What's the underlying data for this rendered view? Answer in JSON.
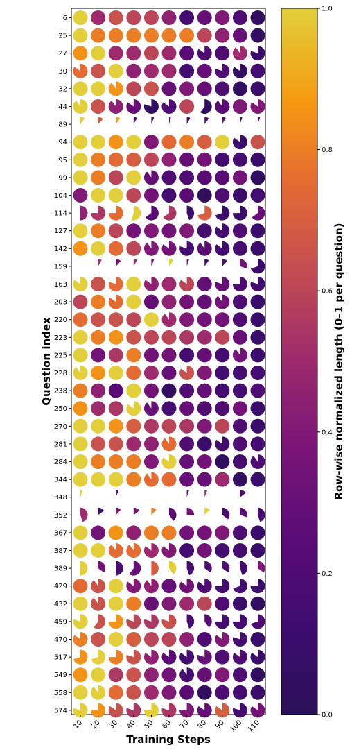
{
  "chart_data": {
    "type": "heatmap",
    "subtype": "pie-glyph grid",
    "xlabel": "Training Steps",
    "ylabel": "Question index",
    "colorbar_label": "Row-wise normalized length (0–1 per question)",
    "colormap": "plasma",
    "clim": [
      0.0,
      1.0
    ],
    "colorbar_ticks": [
      "0.0",
      "0.2",
      "0.4",
      "0.6",
      "0.8",
      "1.0"
    ],
    "grid": false,
    "legend": "colorbar right",
    "x": [
      "10",
      "20",
      "30",
      "40",
      "50",
      "60",
      "70",
      "80",
      "90",
      "100",
      "110"
    ],
    "rows": [
      {
        "q": "6",
        "color": [
          1.0,
          0.5,
          0.65,
          0.6,
          0.6,
          0.45,
          0.15,
          0.3,
          0.4,
          0.2,
          0.05
        ],
        "fill": [
          1,
          1,
          1,
          1,
          1,
          1,
          1,
          1,
          1,
          1,
          1
        ]
      },
      {
        "q": "25",
        "color": [
          1.0,
          0.8,
          0.8,
          0.8,
          0.8,
          0.8,
          0.8,
          0.6,
          0.45,
          0.3,
          0.05
        ],
        "fill": [
          1,
          1,
          1,
          1,
          1,
          1,
          1,
          1,
          1,
          1,
          1
        ]
      },
      {
        "q": "27",
        "color": [
          0.85,
          1.0,
          0.5,
          0.5,
          0.6,
          0.5,
          0.25,
          0.2,
          0.2,
          0.5,
          0.1
        ],
        "fill": [
          1,
          1,
          1,
          1,
          1,
          1,
          1,
          0.85,
          1,
          0.9,
          0.8
        ]
      },
      {
        "q": "30",
        "color": [
          0.75,
          0.65,
          1.0,
          0.45,
          0.5,
          0.5,
          0.15,
          0.3,
          0.2,
          0.05,
          0.15
        ],
        "fill": [
          0.85,
          1,
          1,
          1,
          1,
          1,
          1,
          1,
          0.8,
          0.85,
          1
        ]
      },
      {
        "q": "32",
        "color": [
          1.0,
          1.0,
          0.85,
          0.6,
          0.65,
          0.3,
          0.4,
          0.3,
          0.2,
          0.05,
          0.1
        ],
        "fill": [
          1,
          1,
          0.9,
          1,
          1,
          1,
          1,
          1,
          1,
          1,
          1
        ]
      },
      {
        "q": "44",
        "color": [
          1.0,
          0.65,
          0.45,
          0.3,
          0.05,
          0.2,
          0.6,
          0.05,
          0.25,
          0.4,
          0.4
        ],
        "fill": [
          0.9,
          1,
          0.9,
          0.85,
          0.8,
          0.85,
          1,
          0.6,
          0.9,
          1,
          0.85
        ]
      },
      {
        "q": "89",
        "color": [
          1.0,
          0.7,
          0.9,
          0.25,
          0.15,
          0.3,
          0.15,
          0.2,
          0.3,
          0.2,
          0.2
        ],
        "fill": [
          0.1,
          0.12,
          0.1,
          0.08,
          0.06,
          0.04,
          0.08,
          0.1,
          0.08,
          0.05,
          0.05
        ]
      },
      {
        "q": "94",
        "color": [
          1.0,
          1.0,
          0.85,
          1.0,
          0.4,
          0.75,
          0.8,
          0.7,
          1.0,
          0.1,
          0.65
        ],
        "fill": [
          1,
          1,
          1,
          1,
          1,
          1,
          1,
          1,
          1,
          0.85,
          1
        ]
      },
      {
        "q": "95",
        "color": [
          1.0,
          0.8,
          0.75,
          0.7,
          0.6,
          0.45,
          0.3,
          0.35,
          0.15,
          0.15,
          0.1
        ],
        "fill": [
          1,
          1,
          1,
          1,
          1,
          1,
          1,
          1,
          1,
          1,
          1
        ]
      },
      {
        "q": "99",
        "color": [
          1.0,
          0.8,
          0.6,
          1.0,
          0.3,
          0.2,
          0.2,
          0.25,
          0.25,
          0.35,
          0.05
        ],
        "fill": [
          1,
          1,
          1,
          1,
          0.9,
          1,
          1,
          1,
          1,
          1,
          1
        ]
      },
      {
        "q": "104",
        "color": [
          0.4,
          1.0,
          1.0,
          0.6,
          0.35,
          0.15,
          0.25,
          0.05,
          0.2,
          0.1,
          0.15
        ],
        "fill": [
          1,
          1,
          1,
          1,
          1,
          1,
          1,
          1,
          1,
          1,
          1
        ]
      },
      {
        "q": "114",
        "color": [
          0.45,
          0.55,
          0.75,
          1.0,
          0.25,
          0.55,
          0.1,
          0.7,
          0.1,
          0.1,
          0.3
        ],
        "fill": [
          0.5,
          0.75,
          0.75,
          0.55,
          0.65,
          0.65,
          0.45,
          0.7,
          0.7,
          0.75,
          0.65
        ]
      },
      {
        "q": "127",
        "color": [
          1.0,
          0.8,
          0.6,
          0.35,
          0.4,
          0.35,
          0.4,
          0.15,
          0.15,
          0.2,
          0.1
        ],
        "fill": [
          1,
          1,
          1,
          1,
          1,
          1,
          1,
          1,
          0.85,
          1,
          1
        ]
      },
      {
        "q": "142",
        "color": [
          0.85,
          1.0,
          0.75,
          0.6,
          0.4,
          0.35,
          0.15,
          0.25,
          0.15,
          0.15,
          0.1
        ],
        "fill": [
          1,
          1,
          1,
          1,
          0.9,
          0.85,
          0.8,
          0.9,
          0.85,
          1,
          1
        ]
      },
      {
        "q": "159",
        "color": [
          0.5,
          0.5,
          0.35,
          0.5,
          0.3,
          1.0,
          0.3,
          0.15,
          0.2,
          0.35,
          0.1
        ],
        "fill": [
          0,
          0.08,
          0.12,
          0.08,
          0.06,
          0.1,
          0.05,
          0.1,
          0.12,
          0.3,
          0.7
        ]
      },
      {
        "q": "163",
        "color": [
          1.0,
          0.65,
          0.75,
          1.0,
          0.45,
          0.5,
          0.6,
          0.3,
          0.3,
          0.2,
          0.15
        ],
        "fill": [
          0.85,
          1,
          0.8,
          1,
          0.85,
          1,
          0.85,
          1,
          0.8,
          0.75,
          0.8
        ]
      },
      {
        "q": "203",
        "color": [
          0.6,
          0.8,
          0.75,
          1.0,
          0.3,
          0.45,
          0.35,
          0.3,
          0.35,
          0.2,
          0.1
        ],
        "fill": [
          1,
          1,
          0.85,
          1,
          1,
          1,
          1,
          1,
          0.9,
          1,
          1
        ]
      },
      {
        "q": "220",
        "color": [
          0.75,
          0.65,
          0.65,
          0.6,
          1.0,
          0.5,
          0.4,
          0.35,
          0.35,
          0.2,
          0.1
        ],
        "fill": [
          1,
          1,
          1,
          1,
          1,
          0.9,
          1,
          1,
          1,
          1,
          1
        ]
      },
      {
        "q": "223",
        "color": [
          1.0,
          0.8,
          0.85,
          0.65,
          0.6,
          0.6,
          0.55,
          0.5,
          0.6,
          0.3,
          0.1
        ],
        "fill": [
          1,
          1,
          1,
          1,
          1,
          1,
          1,
          1,
          1,
          1,
          1
        ]
      },
      {
        "q": "225",
        "color": [
          1.0,
          0.35,
          0.55,
          0.8,
          0.35,
          0.35,
          0.15,
          0.3,
          0.15,
          0.35,
          0.1
        ],
        "fill": [
          1,
          1,
          1,
          1,
          1,
          1,
          1,
          1,
          1,
          0.9,
          1
        ]
      },
      {
        "q": "228",
        "color": [
          1.0,
          0.85,
          1.0,
          0.75,
          0.5,
          0.3,
          0.65,
          0.4,
          0.15,
          0.15,
          0.15
        ],
        "fill": [
          0.9,
          1,
          1,
          1,
          1,
          1,
          0.85,
          1,
          1,
          1,
          1
        ]
      },
      {
        "q": "238",
        "color": [
          0.8,
          0.45,
          0.25,
          1.0,
          0.35,
          0.05,
          0.2,
          0.3,
          0.15,
          0.15,
          0.2
        ],
        "fill": [
          1,
          1,
          1,
          1,
          1,
          1,
          1,
          1,
          1,
          1,
          1
        ]
      },
      {
        "q": "250",
        "color": [
          0.85,
          0.5,
          0.55,
          1.0,
          0.3,
          0.15,
          0.3,
          0.2,
          0.2,
          0.35,
          0.1
        ],
        "fill": [
          1,
          1,
          1,
          0.85,
          0.9,
          1,
          1,
          1,
          1,
          1,
          1
        ]
      },
      {
        "q": "270",
        "color": [
          1.0,
          1.0,
          0.85,
          0.7,
          0.55,
          0.6,
          0.55,
          0.4,
          0.6,
          0.2,
          0.1
        ],
        "fill": [
          1,
          1,
          1,
          1,
          1,
          1,
          1,
          1,
          1,
          1,
          1
        ]
      },
      {
        "q": "281",
        "color": [
          1.0,
          0.65,
          0.65,
          0.5,
          0.45,
          0.75,
          0.2,
          0.1,
          0.15,
          0.2,
          0.15
        ],
        "fill": [
          1,
          1,
          1,
          1,
          1,
          0.9,
          1,
          1,
          0.85,
          1,
          1
        ]
      },
      {
        "q": "284",
        "color": [
          1.0,
          0.8,
          0.8,
          0.8,
          0.4,
          1.0,
          0.3,
          0.35,
          0.05,
          0.15,
          0.2
        ],
        "fill": [
          1,
          1,
          1,
          1,
          1,
          0.85,
          1,
          1,
          1,
          1,
          0.9
        ]
      },
      {
        "q": "344",
        "color": [
          1.0,
          1.0,
          1.0,
          0.8,
          0.75,
          0.75,
          0.3,
          0.3,
          0.5,
          0.05,
          0.1
        ],
        "fill": [
          1,
          1,
          1,
          1,
          0.9,
          1,
          1,
          1,
          1,
          1,
          1
        ]
      },
      {
        "q": "348",
        "color": [
          1.0,
          0.5,
          0.25,
          0.5,
          0.5,
          0.5,
          0.2,
          0.5,
          0.5,
          0.2,
          0.5
        ],
        "fill": [
          0.05,
          0,
          0.06,
          0,
          0,
          0,
          0.05,
          0.06,
          0,
          0.15,
          0
        ]
      },
      {
        "q": "352",
        "color": [
          0.5,
          0.1,
          0.4,
          0.35,
          0.8,
          0.25,
          0.35,
          1.0,
          0.2,
          0.25,
          0.15
        ],
        "fill": [
          0.45,
          0.15,
          0.12,
          0.15,
          0.12,
          0.4,
          0.25,
          0.12,
          0.35,
          0.3,
          0.45
        ]
      },
      {
        "q": "367",
        "color": [
          1.0,
          0.35,
          0.85,
          0.45,
          0.8,
          0.8,
          0.35,
          0.35,
          0.4,
          0.2,
          0.1
        ],
        "fill": [
          1,
          1,
          1,
          1,
          1,
          1,
          1,
          1,
          1,
          1,
          1
        ]
      },
      {
        "q": "387",
        "color": [
          1.0,
          1.0,
          0.75,
          0.75,
          0.5,
          0.4,
          0.15,
          0.35,
          0.15,
          0.15,
          0.1
        ],
        "fill": [
          1,
          1,
          0.9,
          0.9,
          0.85,
          0.85,
          1,
          1,
          1,
          1,
          1
        ]
      },
      {
        "q": "389",
        "color": [
          1.0,
          0.35,
          0.15,
          0.3,
          0.7,
          1.0,
          0.15,
          0.2,
          0.2,
          0.15,
          0.4
        ],
        "fill": [
          0.5,
          0.35,
          0.5,
          0.6,
          0.5,
          0.4,
          0.45,
          0.35,
          0.35,
          0.45,
          0.35
        ]
      },
      {
        "q": "429",
        "color": [
          0.75,
          0.65,
          1.0,
          0.4,
          0.45,
          0.3,
          0.35,
          0.2,
          0.15,
          0.15,
          0.1
        ],
        "fill": [
          1,
          0.9,
          1,
          0.85,
          0.9,
          1,
          0.85,
          0.85,
          0.75,
          0.7,
          0.75
        ]
      },
      {
        "q": "432",
        "color": [
          1.0,
          0.65,
          1.0,
          0.8,
          0.3,
          0.4,
          0.5,
          0.6,
          0.2,
          0.1,
          0.05
        ],
        "fill": [
          1,
          0.9,
          1,
          1,
          1,
          1,
          1,
          1,
          1,
          1,
          1
        ]
      },
      {
        "q": "459",
        "color": [
          1.0,
          0.65,
          0.85,
          0.6,
          0.55,
          0.65,
          0.15,
          0.25,
          0.15,
          0.15,
          0.2
        ],
        "fill": [
          0.8,
          0.6,
          0.75,
          0.8,
          0.8,
          0.8,
          0.45,
          0.4,
          0.75,
          0.75,
          0.7
        ]
      },
      {
        "q": "470",
        "color": [
          0.8,
          0.65,
          1.0,
          0.7,
          0.6,
          0.6,
          0.45,
          0.2,
          0.4,
          0.15,
          0.1
        ],
        "fill": [
          0.85,
          1,
          1,
          1,
          1,
          1,
          1,
          1,
          0.85,
          0.8,
          1
        ]
      },
      {
        "q": "517",
        "color": [
          0.85,
          1.0,
          0.8,
          0.65,
          0.45,
          0.25,
          0.15,
          0.3,
          0.2,
          0.2,
          0.1
        ],
        "fill": [
          0.7,
          0.7,
          0.75,
          0.8,
          0.85,
          0.85,
          0.85,
          0.8,
          1,
          0.85,
          0.85
        ]
      },
      {
        "q": "549",
        "color": [
          0.85,
          1.0,
          0.55,
          0.65,
          0.45,
          0.35,
          0.15,
          0.3,
          0.4,
          0.2,
          0.05
        ],
        "fill": [
          1,
          1,
          1,
          1,
          1,
          1,
          0.9,
          1,
          1,
          1,
          1
        ]
      },
      {
        "q": "558",
        "color": [
          1.0,
          1.0,
          0.75,
          0.65,
          0.5,
          0.4,
          0.25,
          0.05,
          0.2,
          0.15,
          0.1
        ],
        "fill": [
          1,
          0.9,
          1,
          1,
          1,
          1,
          1,
          1,
          1,
          1,
          1
        ]
      },
      {
        "q": "574",
        "color": [
          1.0,
          0.85,
          0.65,
          0.55,
          1.0,
          0.55,
          0.4,
          0.3,
          0.7,
          0.15,
          0.35
        ],
        "fill": [
          0.8,
          0.75,
          0.85,
          0.8,
          0.75,
          0.8,
          0.75,
          0.85,
          0.85,
          0.8,
          0.85
        ]
      }
    ]
  }
}
